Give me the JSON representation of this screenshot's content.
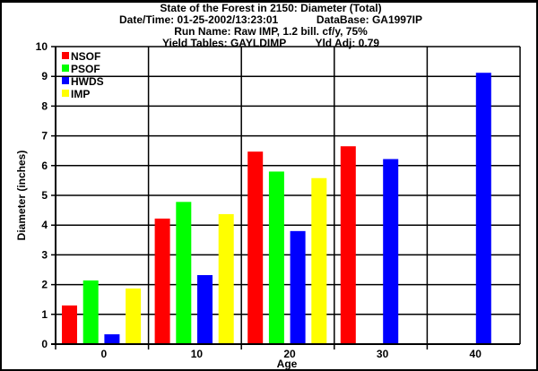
{
  "header": {
    "title": "State of the Forest in 2150: Diameter (Total)",
    "datetime": "Date/Time: 01-25-2002/13:23:01",
    "database": "DataBase: GA1997IP",
    "run_name": "Run Name: Raw IMP, 1.2 bill. cf/y, 75%",
    "yield_tables": "Yield Tables: GAYLDIMP",
    "yld_adj": "Yld Adj: 0.79"
  },
  "chart_data": {
    "type": "bar",
    "title": "State of the Forest in 2150: Diameter (Total)",
    "xlabel": "Age",
    "ylabel": "Diameter (inches)",
    "categories": [
      "0",
      "10",
      "20",
      "30",
      "40"
    ],
    "ylim": [
      0,
      10
    ],
    "yticks": [
      "0",
      "1",
      "2",
      "3",
      "4",
      "5",
      "6",
      "7",
      "8",
      "9",
      "10"
    ],
    "grid": true,
    "legend_position": "top-left",
    "series": [
      {
        "name": "NSOF",
        "color": "#ff0000",
        "values": [
          1.3,
          4.22,
          6.47,
          6.65,
          null
        ]
      },
      {
        "name": "PSOF",
        "color": "#00ff00",
        "values": [
          2.14,
          4.78,
          5.8,
          null,
          null
        ]
      },
      {
        "name": "HWDS",
        "color": "#0000ff",
        "values": [
          0.33,
          2.32,
          3.8,
          6.22,
          9.12
        ]
      },
      {
        "name": "IMP",
        "color": "#ffff00",
        "values": [
          1.87,
          4.37,
          5.58,
          null,
          null
        ]
      }
    ]
  }
}
